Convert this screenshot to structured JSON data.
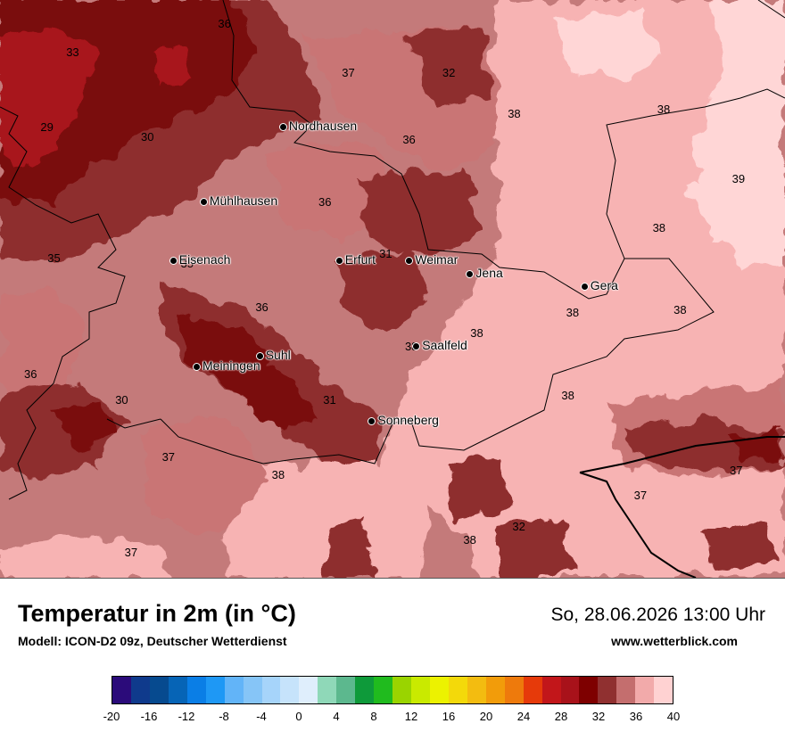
{
  "title": "Temperatur in 2m (in °C)",
  "subtitle": "Modell: ICON-D2 09z, Deutscher Wetterdienst",
  "datetime": "So, 28.06.2026 13:00 Uhr",
  "website": "www.wetterblick.com",
  "cities": [
    {
      "name": "Nordhausen",
      "lon": 10.79,
      "lat": 51.5
    },
    {
      "name": "Mühlhausen",
      "lon": 10.45,
      "lat": 51.21
    },
    {
      "name": "Eisenach",
      "lon": 10.32,
      "lat": 50.98
    },
    {
      "name": "Erfurt",
      "lon": 11.03,
      "lat": 50.98
    },
    {
      "name": "Weimar",
      "lon": 11.33,
      "lat": 50.98
    },
    {
      "name": "Jena",
      "lon": 11.59,
      "lat": 50.93
    },
    {
      "name": "Gera",
      "lon": 12.08,
      "lat": 50.88
    },
    {
      "name": "Saalfeld",
      "lon": 11.36,
      "lat": 50.65
    },
    {
      "name": "Suhl",
      "lon": 10.69,
      "lat": 50.61
    },
    {
      "name": "Meiningen",
      "lon": 10.42,
      "lat": 50.57
    },
    {
      "name": "Sonneberg",
      "lon": 11.17,
      "lat": 50.36
    }
  ],
  "values": [
    {
      "v": "36",
      "lon": 10.54,
      "lat": 51.9
    },
    {
      "v": "33",
      "lon": 9.89,
      "lat": 51.79
    },
    {
      "v": "37",
      "lon": 11.07,
      "lat": 51.71
    },
    {
      "v": "32",
      "lon": 11.5,
      "lat": 51.71
    },
    {
      "v": "38",
      "lon": 11.78,
      "lat": 51.55
    },
    {
      "v": "38",
      "lon": 12.42,
      "lat": 51.57
    },
    {
      "v": "29",
      "lon": 9.78,
      "lat": 51.5
    },
    {
      "v": "30",
      "lon": 10.21,
      "lat": 51.46
    },
    {
      "v": "36",
      "lon": 11.33,
      "lat": 51.45
    },
    {
      "v": "39",
      "lon": 12.74,
      "lat": 51.3
    },
    {
      "v": "36",
      "lon": 10.97,
      "lat": 51.21
    },
    {
      "v": "38",
      "lon": 12.4,
      "lat": 51.11
    },
    {
      "v": "35",
      "lon": 9.81,
      "lat": 50.99
    },
    {
      "v": "35",
      "lon": 10.38,
      "lat": 50.97
    },
    {
      "v": "31",
      "lon": 11.23,
      "lat": 51.01
    },
    {
      "v": "36",
      "lon": 10.7,
      "lat": 50.8
    },
    {
      "v": "38",
      "lon": 12.03,
      "lat": 50.78
    },
    {
      "v": "38",
      "lon": 12.49,
      "lat": 50.79
    },
    {
      "v": "38",
      "lon": 11.62,
      "lat": 50.7
    },
    {
      "v": "38",
      "lon": 11.34,
      "lat": 50.65
    },
    {
      "v": "36",
      "lon": 9.71,
      "lat": 50.54
    },
    {
      "v": "30",
      "lon": 10.1,
      "lat": 50.44
    },
    {
      "v": "31",
      "lon": 10.99,
      "lat": 50.44
    },
    {
      "v": "38",
      "lon": 12.01,
      "lat": 50.46
    },
    {
      "v": "37",
      "lon": 10.3,
      "lat": 50.22
    },
    {
      "v": "38",
      "lon": 10.77,
      "lat": 50.15
    },
    {
      "v": "37",
      "lon": 12.73,
      "lat": 50.17
    },
    {
      "v": "37",
      "lon": 12.32,
      "lat": 50.07
    },
    {
      "v": "32",
      "lon": 11.8,
      "lat": 49.95
    },
    {
      "v": "38",
      "lon": 11.59,
      "lat": 49.9
    },
    {
      "v": "37",
      "lon": 10.14,
      "lat": 49.85
    }
  ],
  "colorbar": {
    "colors": [
      "#2b0b7a",
      "#0f3a8c",
      "#064a8f",
      "#0664b6",
      "#0a7ee6",
      "#1e98f5",
      "#62b4f8",
      "#86c5f7",
      "#a6d4fa",
      "#c6e3fb",
      "#dfeefc",
      "#8fd8b8",
      "#5cb88e",
      "#0e9a3a",
      "#20bb1e",
      "#9ad400",
      "#c9ea00",
      "#ecf200",
      "#f3d90a",
      "#f3bc10",
      "#f29c0a",
      "#ee7a0c",
      "#e63a0a",
      "#c2161a",
      "#a8121a",
      "#7e0000",
      "#903030",
      "#c46e6e",
      "#f2aaaa",
      "#ffd2d2"
    ],
    "ticks": [
      "-20",
      "-16",
      "-12",
      "-8",
      "-4",
      "0",
      "4",
      "8",
      "12",
      "16",
      "20",
      "24",
      "28",
      "32",
      "36",
      "40"
    ],
    "min": -20,
    "max": 40
  }
}
